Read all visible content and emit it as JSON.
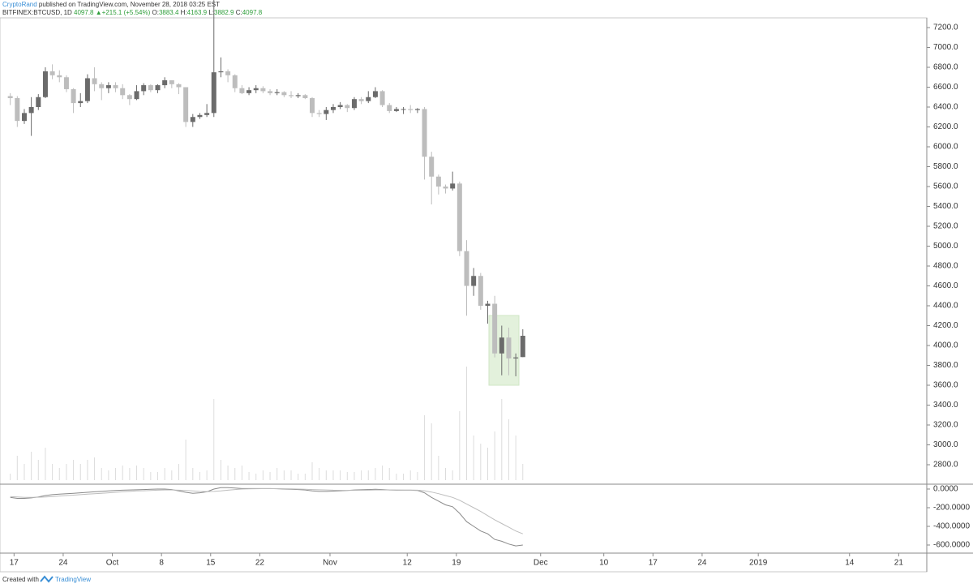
{
  "header": {
    "author": "CryptoRand",
    "published": "published on TradingView.com, November 28, 2018 03:25 EST",
    "symbol": "BITFINEX:BTCUSD, 1D",
    "last": "4097.8",
    "change": "+215.1 (+5.54%)",
    "ohlc": [
      {
        "label": "O:",
        "value": "3883.4"
      },
      {
        "label": "H:",
        "value": "4163.9"
      },
      {
        "label": "L:",
        "value": "3882.9"
      },
      {
        "label": "C:",
        "value": "4097.8"
      }
    ]
  },
  "footer": {
    "created": "Created with",
    "brand": "TradingView"
  },
  "chart_data": {
    "type": "candlestick",
    "x": [
      "2018-09-16",
      "2018-09-17",
      "2018-09-18",
      "2018-09-19",
      "2018-09-20",
      "2018-09-21",
      "2018-09-22",
      "2018-09-23",
      "2018-09-24",
      "2018-09-25",
      "2018-09-26",
      "2018-09-27",
      "2018-09-28",
      "2018-09-29",
      "2018-09-30",
      "2018-10-01",
      "2018-10-02",
      "2018-10-03",
      "2018-10-04",
      "2018-10-05",
      "2018-10-06",
      "2018-10-07",
      "2018-10-08",
      "2018-10-09",
      "2018-10-10",
      "2018-10-11",
      "2018-10-12",
      "2018-10-13",
      "2018-10-14",
      "2018-10-15",
      "2018-10-16",
      "2018-10-17",
      "2018-10-18",
      "2018-10-19",
      "2018-10-20",
      "2018-10-21",
      "2018-10-22",
      "2018-10-23",
      "2018-10-24",
      "2018-10-25",
      "2018-10-26",
      "2018-10-27",
      "2018-10-28",
      "2018-10-29",
      "2018-10-30",
      "2018-10-31",
      "2018-11-01",
      "2018-11-02",
      "2018-11-03",
      "2018-11-04",
      "2018-11-05",
      "2018-11-06",
      "2018-11-07",
      "2018-11-08",
      "2018-11-09",
      "2018-11-10",
      "2018-11-11",
      "2018-11-12",
      "2018-11-13",
      "2018-11-14",
      "2018-11-15",
      "2018-11-16",
      "2018-11-17",
      "2018-11-18",
      "2018-11-19",
      "2018-11-20",
      "2018-11-21",
      "2018-11-22",
      "2018-11-23",
      "2018-11-24",
      "2018-11-25",
      "2018-11-26",
      "2018-11-27",
      "2018-11-28"
    ],
    "open": [
      6510,
      6490,
      6260,
      6340,
      6400,
      6500,
      6760,
      6720,
      6700,
      6580,
      6440,
      6460,
      6690,
      6630,
      6590,
      6620,
      6590,
      6520,
      6480,
      6560,
      6620,
      6570,
      6620,
      6670,
      6630,
      6600,
      6250,
      6300,
      6320,
      6340,
      6750,
      6760,
      6720,
      6590,
      6540,
      6570,
      6590,
      6560,
      6540,
      6550,
      6520,
      6510,
      6520,
      6490,
      6340,
      6330,
      6370,
      6400,
      6420,
      6390,
      6480,
      6460,
      6500,
      6560,
      6420,
      6360,
      6380,
      6380,
      6370,
      6380,
      5900,
      5700,
      5600,
      5580,
      5630,
      4950,
      4600,
      4700,
      4400,
      4420,
      3920,
      4080,
      3870,
      3883.4
    ],
    "high": [
      6540,
      6510,
      6380,
      6500,
      6530,
      6800,
      6830,
      6770,
      6720,
      6590,
      6540,
      6730,
      6800,
      6650,
      6650,
      6650,
      6630,
      6530,
      6620,
      6640,
      6630,
      6630,
      6700,
      6670,
      6640,
      6600,
      6330,
      6340,
      6430,
      7750,
      6900,
      6780,
      6730,
      6620,
      6600,
      6620,
      6610,
      6580,
      6580,
      6560,
      6560,
      6540,
      6530,
      6500,
      6370,
      6400,
      6430,
      6450,
      6430,
      6500,
      6500,
      6560,
      6600,
      6570,
      6440,
      6400,
      6400,
      6420,
      6390,
      6400,
      5950,
      5720,
      5620,
      5750,
      5650,
      5060,
      4780,
      4730,
      4450,
      4500,
      4200,
      4180,
      3920,
      4163.9
    ],
    "low": [
      6420,
      6200,
      6230,
      6110,
      6370,
      6490,
      6680,
      6650,
      6550,
      6340,
      6400,
      6440,
      6560,
      6470,
      6540,
      6550,
      6480,
      6420,
      6470,
      6520,
      6550,
      6540,
      6590,
      6590,
      6530,
      6200,
      6200,
      6280,
      6300,
      6300,
      6700,
      6650,
      6550,
      6530,
      6520,
      6540,
      6540,
      6520,
      6520,
      6500,
      6490,
      6490,
      6480,
      6300,
      6300,
      6270,
      6340,
      6380,
      6350,
      6370,
      6430,
      6440,
      6490,
      6400,
      6340,
      6350,
      6330,
      6340,
      6340,
      5670,
      5420,
      5520,
      5530,
      5560,
      4900,
      4300,
      4500,
      4360,
      4220,
      3880,
      3700,
      3700,
      3690,
      3882.9
    ],
    "close": [
      6490,
      6260,
      6340,
      6400,
      6500,
      6760,
      6720,
      6700,
      6580,
      6440,
      6460,
      6690,
      6630,
      6590,
      6620,
      6590,
      6520,
      6480,
      6560,
      6620,
      6570,
      6620,
      6670,
      6630,
      6600,
      6250,
      6300,
      6320,
      6340,
      6750,
      6760,
      6720,
      6590,
      6540,
      6570,
      6590,
      6560,
      6540,
      6550,
      6520,
      6510,
      6520,
      6490,
      6340,
      6330,
      6370,
      6400,
      6420,
      6390,
      6480,
      6460,
      6500,
      6560,
      6420,
      6360,
      6380,
      6380,
      6370,
      6380,
      5900,
      5700,
      5600,
      5580,
      5630,
      4950,
      4600,
      4700,
      4400,
      4420,
      3920,
      4080,
      3870,
      3880,
      4097.8
    ],
    "volume": [
      8,
      30,
      20,
      35,
      25,
      40,
      20,
      15,
      20,
      25,
      20,
      25,
      28,
      15,
      12,
      15,
      18,
      15,
      18,
      15,
      10,
      10,
      15,
      12,
      20,
      50,
      15,
      10,
      12,
      100,
      25,
      18,
      15,
      18,
      10,
      8,
      12,
      10,
      15,
      12,
      12,
      8,
      8,
      22,
      15,
      12,
      12,
      12,
      10,
      10,
      12,
      12,
      15,
      18,
      15,
      8,
      8,
      12,
      10,
      80,
      70,
      30,
      15,
      12,
      85,
      140,
      55,
      45,
      40,
      60,
      100,
      75,
      55,
      20
    ],
    "up_color": "#6b6b6b",
    "down_color": "#bdbdbd",
    "volume_color": "#dcdcdc",
    "xlim": [
      "2018-09-15",
      "2019-01-25"
    ],
    "xticks": [
      {
        "value": "2018-09-17",
        "label": "17"
      },
      {
        "value": "2018-09-24",
        "label": "24"
      },
      {
        "value": "2018-10-01",
        "label": "Oct"
      },
      {
        "value": "2018-10-08",
        "label": "8"
      },
      {
        "value": "2018-10-15",
        "label": "15"
      },
      {
        "value": "2018-10-22",
        "label": "22"
      },
      {
        "value": "2018-11-01",
        "label": "Nov"
      },
      {
        "value": "2018-11-12",
        "label": "12"
      },
      {
        "value": "2018-11-19",
        "label": "19"
      },
      {
        "value": "2018-12-01",
        "label": "Dec"
      },
      {
        "value": "2018-12-10",
        "label": "10"
      },
      {
        "value": "2018-12-17",
        "label": "17"
      },
      {
        "value": "2018-12-24",
        "label": "24"
      },
      {
        "value": "2019-01-01",
        "label": "2019"
      },
      {
        "value": "2019-01-14",
        "label": "14"
      },
      {
        "value": "2019-01-21",
        "label": "21"
      }
    ],
    "ylim": [
      2604,
      7298
    ],
    "yticks": [
      {
        "value": 2800,
        "label": "2800.0"
      },
      {
        "value": 3000,
        "label": "3000.0"
      },
      {
        "value": 3200,
        "label": "3200.0"
      },
      {
        "value": 3400,
        "label": "3400.0"
      },
      {
        "value": 3600,
        "label": "3600.0"
      },
      {
        "value": 3800,
        "label": "3800.0"
      },
      {
        "value": 4000,
        "label": "4000.0"
      },
      {
        "value": 4200,
        "label": "4200.0"
      },
      {
        "value": 4400,
        "label": "4400.0"
      },
      {
        "value": 4600,
        "label": "4600.0"
      },
      {
        "value": 4800,
        "label": "4800.0"
      },
      {
        "value": 5000,
        "label": "5000.0"
      },
      {
        "value": 5200,
        "label": "5200.0"
      },
      {
        "value": 5400,
        "label": "5400.0"
      },
      {
        "value": 5600,
        "label": "5600.0"
      },
      {
        "value": 5800,
        "label": "5800.0"
      },
      {
        "value": 6000,
        "label": "6000.0"
      },
      {
        "value": 6200,
        "label": "6200.0"
      },
      {
        "value": 6400,
        "label": "6400.0"
      },
      {
        "value": 6600,
        "label": "6600.0"
      },
      {
        "value": 6800,
        "label": "6800.0"
      },
      {
        "value": 7000,
        "label": "7000.0"
      },
      {
        "value": 7200,
        "label": "7200.0"
      }
    ],
    "volume_ylim": [
      0,
      200
    ],
    "macd": {
      "ylim": [
        -687,
        52
      ],
      "yticks": [
        {
          "value": 0,
          "label": "0.0000"
        },
        {
          "value": -200,
          "label": "-200.0000"
        },
        {
          "value": -400,
          "label": "-400.0000"
        },
        {
          "value": -600,
          "label": "-600.0000"
        }
      ],
      "series": [
        {
          "color": "#8a8a8a",
          "values": [
            -90,
            -100,
            -100,
            -95,
            -85,
            -70,
            -60,
            -55,
            -50,
            -45,
            -40,
            -35,
            -30,
            -25,
            -20,
            -15,
            -12,
            -10,
            -8,
            -5,
            -2,
            0,
            0,
            -5,
            -20,
            -35,
            -45,
            -40,
            -30,
            0,
            15,
            15,
            10,
            5,
            5,
            5,
            5,
            5,
            3,
            0,
            -3,
            -5,
            -10,
            -20,
            -25,
            -25,
            -22,
            -18,
            -15,
            -10,
            -8,
            -5,
            -2,
            -5,
            -10,
            -12,
            -12,
            -12,
            -15,
            -40,
            -90,
            -130,
            -170,
            -190,
            -260,
            -350,
            -400,
            -450,
            -480,
            -540,
            -560,
            -590,
            -610,
            -600
          ]
        },
        {
          "color": "#bdbdbd",
          "values": [
            -80,
            -85,
            -90,
            -90,
            -88,
            -85,
            -80,
            -75,
            -70,
            -65,
            -60,
            -55,
            -50,
            -45,
            -40,
            -35,
            -30,
            -25,
            -20,
            -18,
            -15,
            -12,
            -10,
            -10,
            -12,
            -15,
            -20,
            -25,
            -27,
            -25,
            -20,
            -12,
            -5,
            0,
            2,
            3,
            4,
            4,
            4,
            3,
            2,
            0,
            -2,
            -5,
            -8,
            -10,
            -12,
            -13,
            -14,
            -14,
            -13,
            -12,
            -10,
            -10,
            -10,
            -10,
            -11,
            -11,
            -12,
            -18,
            -32,
            -50,
            -70,
            -90,
            -120,
            -160,
            -200,
            -240,
            -285,
            -330,
            -370,
            -410,
            -450,
            -480
          ]
        }
      ]
    }
  }
}
